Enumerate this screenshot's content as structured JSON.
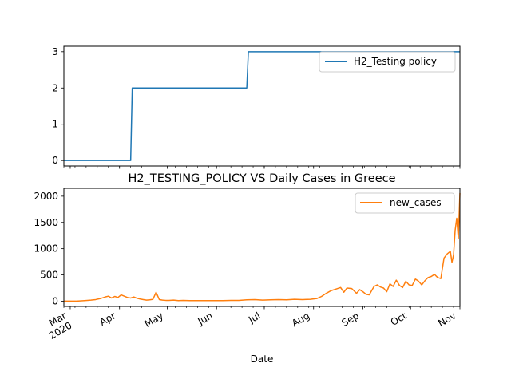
{
  "colors": {
    "series_testing": "#1f77b4",
    "series_cases": "#ff7f0e",
    "axis": "#000000",
    "background": "#ffffff",
    "legend_border": "#cccccc"
  },
  "chart_data": [
    {
      "type": "line",
      "step": true,
      "title": "",
      "xlabel": "",
      "ylabel": "",
      "xlim": [
        "2020-02-26",
        "2020-11-01"
      ],
      "ylim": [
        -0.15,
        3.15
      ],
      "yticks": [
        0,
        1,
        2,
        3
      ],
      "legend_position": "upper right",
      "grid": false,
      "series": [
        {
          "name": "H2_Testing policy",
          "color": "#1f77b4",
          "x": [
            "2020-02-26",
            "2020-04-08",
            "2020-04-09",
            "2020-06-20",
            "2020-06-21",
            "2020-11-01"
          ],
          "values": [
            0,
            0,
            2,
            2,
            3,
            3
          ]
        }
      ]
    },
    {
      "type": "line",
      "title": "H2_TESTING_POLICY VS Daily Cases in Greece",
      "xlabel": "Date",
      "ylabel": "",
      "xlim": [
        "2020-02-26",
        "2020-11-01"
      ],
      "ylim": [
        -100,
        2150
      ],
      "yticks": [
        0,
        500,
        1000,
        1500,
        2000
      ],
      "xtick_dates": [
        "2020-03-01",
        "2020-04-01",
        "2020-05-01",
        "2020-06-01",
        "2020-07-01",
        "2020-08-01",
        "2020-09-01",
        "2020-10-01",
        "2020-11-01"
      ],
      "xtick_labels": [
        "Mar\n2020",
        "Apr",
        "May",
        "Jun",
        "Jul",
        "Aug",
        "Sep",
        "Oct",
        "Nov"
      ],
      "legend_position": "upper right",
      "grid": false,
      "series": [
        {
          "name": "new_cases",
          "color": "#ff7f0e",
          "x": [
            "2020-02-26",
            "2020-03-05",
            "2020-03-10",
            "2020-03-14",
            "2020-03-17",
            "2020-03-20",
            "2020-03-23",
            "2020-03-25",
            "2020-03-27",
            "2020-03-29",
            "2020-03-31",
            "2020-04-02",
            "2020-04-04",
            "2020-04-06",
            "2020-04-08",
            "2020-04-10",
            "2020-04-12",
            "2020-04-14",
            "2020-04-16",
            "2020-04-18",
            "2020-04-20",
            "2020-04-22",
            "2020-04-24",
            "2020-04-26",
            "2020-04-28",
            "2020-04-30",
            "2020-05-02",
            "2020-05-05",
            "2020-05-08",
            "2020-05-11",
            "2020-05-15",
            "2020-05-20",
            "2020-05-25",
            "2020-06-01",
            "2020-06-05",
            "2020-06-10",
            "2020-06-15",
            "2020-06-20",
            "2020-06-25",
            "2020-06-30",
            "2020-07-05",
            "2020-07-10",
            "2020-07-15",
            "2020-07-20",
            "2020-07-25",
            "2020-07-30",
            "2020-08-03",
            "2020-08-06",
            "2020-08-09",
            "2020-08-12",
            "2020-08-15",
            "2020-08-18",
            "2020-08-20",
            "2020-08-22",
            "2020-08-25",
            "2020-08-28",
            "2020-08-30",
            "2020-09-01",
            "2020-09-03",
            "2020-09-05",
            "2020-09-08",
            "2020-09-10",
            "2020-09-12",
            "2020-09-14",
            "2020-09-16",
            "2020-09-18",
            "2020-09-20",
            "2020-09-22",
            "2020-09-24",
            "2020-09-26",
            "2020-09-28",
            "2020-09-30",
            "2020-10-02",
            "2020-10-04",
            "2020-10-06",
            "2020-10-08",
            "2020-10-10",
            "2020-10-12",
            "2020-10-14",
            "2020-10-16",
            "2020-10-18",
            "2020-10-20",
            "2020-10-22",
            "2020-10-24",
            "2020-10-26",
            "2020-10-27",
            "2020-10-28",
            "2020-10-29",
            "2020-10-30",
            "2020-10-31",
            "2020-11-01"
          ],
          "values": [
            0,
            0,
            10,
            20,
            30,
            50,
            80,
            95,
            60,
            90,
            70,
            120,
            95,
            70,
            60,
            80,
            55,
            40,
            30,
            20,
            25,
            35,
            170,
            30,
            20,
            15,
            15,
            20,
            10,
            15,
            10,
            10,
            10,
            10,
            10,
            15,
            15,
            25,
            30,
            20,
            25,
            30,
            25,
            35,
            30,
            35,
            50,
            90,
            150,
            200,
            230,
            260,
            170,
            250,
            240,
            150,
            220,
            180,
            130,
            120,
            280,
            310,
            270,
            250,
            180,
            330,
            280,
            400,
            300,
            260,
            380,
            310,
            300,
            420,
            380,
            310,
            390,
            450,
            470,
            510,
            450,
            430,
            820,
            900,
            950,
            740,
            880,
            1350,
            1580,
            1200,
            2060
          ]
        }
      ]
    }
  ]
}
